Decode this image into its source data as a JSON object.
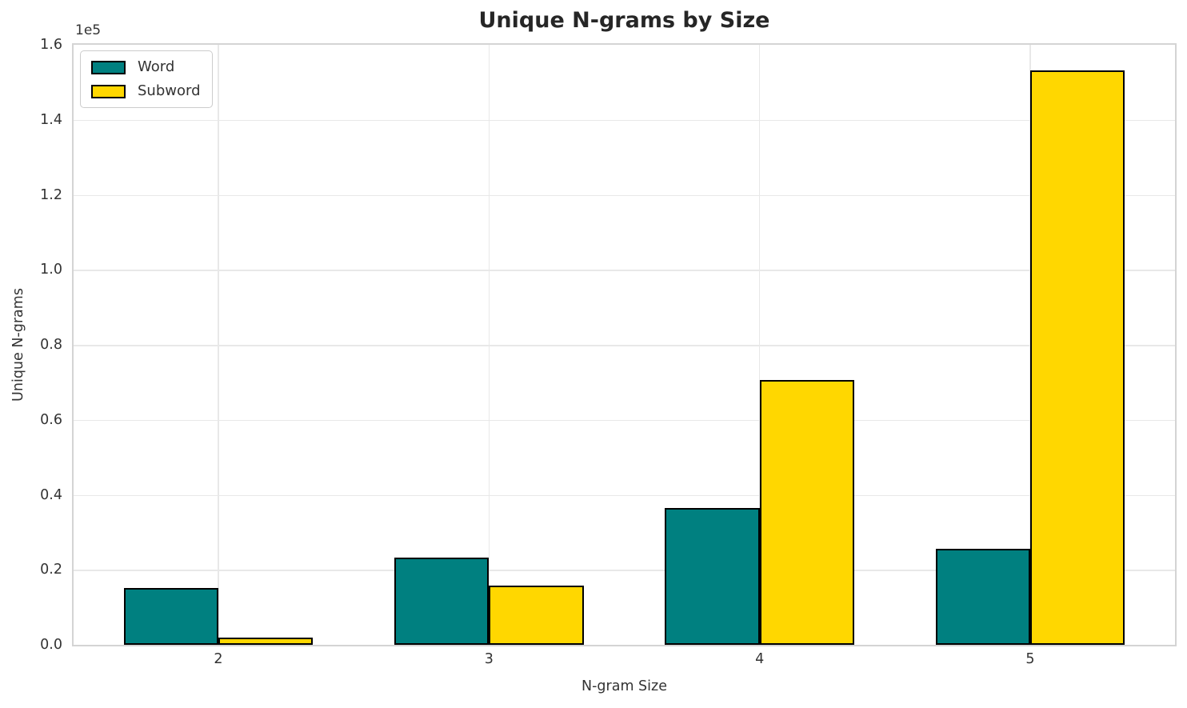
{
  "chart_data": {
    "type": "bar",
    "title": "Unique N-grams by Size",
    "xlabel": "N-gram Size",
    "ylabel": "Unique N-grams",
    "y_offset_text": "1e5",
    "categories": [
      "2",
      "3",
      "4",
      "5"
    ],
    "series": [
      {
        "name": "Word",
        "color": "#008080",
        "values": [
          15200,
          23300,
          36500,
          25600
        ]
      },
      {
        "name": "Subword",
        "color": "#FFD700",
        "values": [
          1900,
          15700,
          70700,
          153100
        ]
      }
    ],
    "bar_edge_color": "#000000",
    "bar_width_units": 0.35,
    "ylim": [
      0,
      160000
    ],
    "y_tick_values": [
      0,
      20000,
      40000,
      60000,
      80000,
      100000,
      120000,
      140000,
      160000
    ],
    "y_tick_labels": [
      "0.0",
      "0.2",
      "0.4",
      "0.6",
      "0.8",
      "1.0",
      "1.2",
      "1.4",
      "1.6"
    ],
    "grid": true,
    "legend_position": "upper left"
  },
  "style": {
    "grid_color": "#e8e8e8",
    "spine_color": "#d4d4d4",
    "text_color": "#333333",
    "title_color": "#262626",
    "background": "#ffffff"
  }
}
